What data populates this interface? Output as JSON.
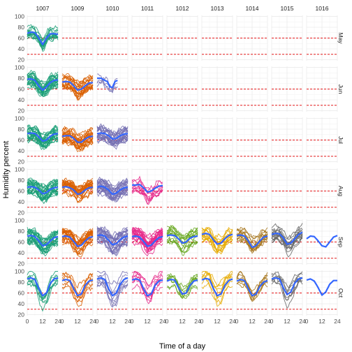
{
  "chart_data": {
    "type": "line",
    "layout": "facet-grid",
    "xlabel": "Time of a day",
    "ylabel": "Humidity percent",
    "x_ticks": [
      0,
      12,
      24
    ],
    "x_range": [
      0,
      24
    ],
    "y_ticks": [
      20,
      40,
      60,
      80,
      100
    ],
    "y_range": [
      18,
      102
    ],
    "reference_lines": [
      {
        "y": 60,
        "style": "dashed",
        "color": "#e41a1c"
      },
      {
        "y": 30,
        "style": "dashed",
        "color": "#e41a1c"
      }
    ],
    "smooth_color": "#3366ff",
    "columns": [
      "1007",
      "1009",
      "1010",
      "1011",
      "1012",
      "1013",
      "1014",
      "1015",
      "1016"
    ],
    "rows": [
      "May",
      "Jun",
      "Jul",
      "Aug",
      "Sep",
      "Oct"
    ],
    "column_colors": {
      "1007": "#1b9e77",
      "1009": "#d95f02",
      "1010": "#7570b3",
      "1011": "#e7298a",
      "1012": "#66a61e",
      "1013": "#e6ab02",
      "1014": "#a6761d",
      "1015": "#666666",
      "1016": "#3366ff"
    },
    "panels": [
      {
        "column": "1007",
        "row": "May",
        "days": 15,
        "x_max": 24,
        "smooth": [
          [
            0,
            69
          ],
          [
            3,
            71
          ],
          [
            6,
            70
          ],
          [
            9,
            60
          ],
          [
            12,
            48
          ],
          [
            15,
            60
          ],
          [
            18,
            68
          ],
          [
            21,
            68
          ],
          [
            24,
            67
          ]
        ]
      },
      {
        "column": "1007",
        "row": "Jun",
        "days": 25,
        "x_max": 24,
        "smooth": [
          [
            0,
            78
          ],
          [
            3,
            79
          ],
          [
            6,
            76
          ],
          [
            9,
            66
          ],
          [
            12,
            58
          ],
          [
            15,
            64
          ],
          [
            18,
            72
          ],
          [
            21,
            76
          ],
          [
            24,
            77
          ]
        ]
      },
      {
        "column": "1009",
        "row": "Jun",
        "days": 20,
        "x_max": 24,
        "smooth": [
          [
            0,
            73
          ],
          [
            3,
            74
          ],
          [
            6,
            73
          ],
          [
            9,
            66
          ],
          [
            12,
            58
          ],
          [
            15,
            60
          ],
          [
            18,
            66
          ],
          [
            21,
            71
          ],
          [
            24,
            72
          ]
        ]
      },
      {
        "column": "1010",
        "row": "Jun",
        "days": 4,
        "x_max": 16,
        "smooth": [
          [
            0,
            80
          ],
          [
            3,
            80
          ],
          [
            6,
            76
          ],
          [
            8,
            74
          ],
          [
            10,
            64
          ],
          [
            12,
            63
          ],
          [
            14,
            74
          ],
          [
            16,
            76
          ]
        ]
      },
      {
        "column": "1007",
        "row": "Jul",
        "days": 25,
        "x_max": 24,
        "smooth": [
          [
            0,
            72
          ],
          [
            3,
            73
          ],
          [
            6,
            72
          ],
          [
            9,
            66
          ],
          [
            12,
            58
          ],
          [
            15,
            60
          ],
          [
            18,
            67
          ],
          [
            21,
            71
          ],
          [
            24,
            72
          ]
        ]
      },
      {
        "column": "1009",
        "row": "Jul",
        "days": 25,
        "x_max": 24,
        "smooth": [
          [
            0,
            67
          ],
          [
            3,
            68
          ],
          [
            6,
            68
          ],
          [
            9,
            63
          ],
          [
            12,
            56
          ],
          [
            15,
            56
          ],
          [
            18,
            62
          ],
          [
            21,
            66
          ],
          [
            24,
            67
          ]
        ]
      },
      {
        "column": "1010",
        "row": "Jul",
        "days": 25,
        "x_max": 24,
        "smooth": [
          [
            0,
            72
          ],
          [
            3,
            73
          ],
          [
            6,
            72
          ],
          [
            9,
            68
          ],
          [
            12,
            62
          ],
          [
            15,
            63
          ],
          [
            18,
            68
          ],
          [
            21,
            71
          ],
          [
            24,
            72
          ]
        ]
      },
      {
        "column": "1007",
        "row": "Aug",
        "days": 25,
        "x_max": 24,
        "smooth": [
          [
            0,
            67
          ],
          [
            3,
            68
          ],
          [
            6,
            67
          ],
          [
            9,
            62
          ],
          [
            12,
            55
          ],
          [
            15,
            57
          ],
          [
            18,
            63
          ],
          [
            21,
            66
          ],
          [
            24,
            67
          ]
        ]
      },
      {
        "column": "1009",
        "row": "Aug",
        "days": 25,
        "x_max": 24,
        "smooth": [
          [
            0,
            67
          ],
          [
            3,
            68
          ],
          [
            6,
            66
          ],
          [
            9,
            62
          ],
          [
            12,
            54
          ],
          [
            15,
            56
          ],
          [
            18,
            62
          ],
          [
            21,
            66
          ],
          [
            24,
            67
          ]
        ]
      },
      {
        "column": "1010",
        "row": "Aug",
        "days": 25,
        "x_max": 24,
        "smooth": [
          [
            0,
            67
          ],
          [
            3,
            69
          ],
          [
            6,
            67
          ],
          [
            9,
            62
          ],
          [
            12,
            54
          ],
          [
            15,
            56
          ],
          [
            18,
            62
          ],
          [
            21,
            66
          ],
          [
            24,
            67
          ]
        ]
      },
      {
        "column": "1011",
        "row": "Aug",
        "days": 10,
        "x_max": 24,
        "smooth": [
          [
            0,
            71
          ],
          [
            3,
            71
          ],
          [
            6,
            72
          ],
          [
            9,
            66
          ],
          [
            12,
            58
          ],
          [
            15,
            60
          ],
          [
            18,
            65
          ],
          [
            21,
            69
          ],
          [
            24,
            70
          ]
        ]
      },
      {
        "column": "1007",
        "row": "Sep",
        "days": 25,
        "x_max": 24,
        "smooth": [
          [
            0,
            71
          ],
          [
            3,
            72
          ],
          [
            6,
            70
          ],
          [
            9,
            62
          ],
          [
            12,
            53
          ],
          [
            15,
            55
          ],
          [
            18,
            62
          ],
          [
            21,
            68
          ],
          [
            24,
            70
          ]
        ]
      },
      {
        "column": "1009",
        "row": "Sep",
        "days": 25,
        "x_max": 24,
        "smooth": [
          [
            0,
            70
          ],
          [
            3,
            71
          ],
          [
            6,
            69
          ],
          [
            9,
            61
          ],
          [
            12,
            52
          ],
          [
            15,
            54
          ],
          [
            18,
            62
          ],
          [
            21,
            68
          ],
          [
            24,
            70
          ]
        ]
      },
      {
        "column": "1010",
        "row": "Sep",
        "days": 25,
        "x_max": 24,
        "smooth": [
          [
            0,
            72
          ],
          [
            3,
            73
          ],
          [
            6,
            71
          ],
          [
            9,
            63
          ],
          [
            12,
            55
          ],
          [
            15,
            57
          ],
          [
            18,
            64
          ],
          [
            21,
            69
          ],
          [
            24,
            71
          ]
        ]
      },
      {
        "column": "1011",
        "row": "Sep",
        "days": 25,
        "x_max": 24,
        "smooth": [
          [
            0,
            70
          ],
          [
            3,
            71
          ],
          [
            6,
            69
          ],
          [
            9,
            61
          ],
          [
            12,
            52
          ],
          [
            15,
            54
          ],
          [
            18,
            62
          ],
          [
            21,
            68
          ],
          [
            24,
            70
          ]
        ]
      },
      {
        "column": "1012",
        "row": "Sep",
        "days": 15,
        "x_max": 24,
        "smooth": [
          [
            0,
            72
          ],
          [
            3,
            73
          ],
          [
            6,
            72
          ],
          [
            9,
            66
          ],
          [
            12,
            58
          ],
          [
            15,
            60
          ],
          [
            18,
            67
          ],
          [
            21,
            70
          ],
          [
            24,
            71
          ]
        ]
      },
      {
        "column": "1013",
        "row": "Sep",
        "days": 15,
        "x_max": 24,
        "smooth": [
          [
            0,
            74
          ],
          [
            3,
            76
          ],
          [
            6,
            74
          ],
          [
            9,
            64
          ],
          [
            12,
            56
          ],
          [
            15,
            58
          ],
          [
            18,
            66
          ],
          [
            21,
            72
          ],
          [
            24,
            74
          ]
        ]
      },
      {
        "column": "1014",
        "row": "Sep",
        "days": 15,
        "x_max": 24,
        "smooth": [
          [
            0,
            72
          ],
          [
            3,
            73
          ],
          [
            6,
            71
          ],
          [
            9,
            62
          ],
          [
            12,
            50
          ],
          [
            15,
            53
          ],
          [
            18,
            62
          ],
          [
            21,
            69
          ],
          [
            24,
            71
          ]
        ]
      },
      {
        "column": "1015",
        "row": "Sep",
        "days": 15,
        "x_max": 24,
        "smooth": [
          [
            0,
            74
          ],
          [
            3,
            76
          ],
          [
            6,
            75
          ],
          [
            9,
            68
          ],
          [
            12,
            56
          ],
          [
            15,
            58
          ],
          [
            18,
            66
          ],
          [
            21,
            74
          ],
          [
            24,
            78
          ]
        ]
      },
      {
        "column": "1016",
        "row": "Sep",
        "days": 0,
        "x_max": 24,
        "smooth": [
          [
            0,
            66
          ],
          [
            3,
            71
          ],
          [
            6,
            70
          ],
          [
            9,
            62
          ],
          [
            12,
            53
          ],
          [
            15,
            51
          ],
          [
            18,
            60
          ],
          [
            21,
            69
          ],
          [
            24,
            72
          ]
        ]
      },
      {
        "column": "1007",
        "row": "Oct",
        "days": 8,
        "x_max": 24,
        "smooth": [
          [
            0,
            86
          ],
          [
            3,
            88
          ],
          [
            6,
            85
          ],
          [
            9,
            68
          ],
          [
            12,
            55
          ],
          [
            15,
            60
          ],
          [
            18,
            78
          ],
          [
            21,
            86
          ],
          [
            24,
            88
          ]
        ]
      },
      {
        "column": "1009",
        "row": "Oct",
        "days": 8,
        "x_max": 24,
        "smooth": [
          [
            0,
            83
          ],
          [
            3,
            85
          ],
          [
            6,
            83
          ],
          [
            9,
            68
          ],
          [
            12,
            55
          ],
          [
            15,
            58
          ],
          [
            18,
            74
          ],
          [
            21,
            82
          ],
          [
            24,
            84
          ]
        ]
      },
      {
        "column": "1010",
        "row": "Oct",
        "days": 8,
        "x_max": 24,
        "smooth": [
          [
            0,
            86
          ],
          [
            3,
            88
          ],
          [
            6,
            85
          ],
          [
            9,
            68
          ],
          [
            12,
            55
          ],
          [
            15,
            60
          ],
          [
            18,
            76
          ],
          [
            21,
            85
          ],
          [
            24,
            88
          ]
        ]
      },
      {
        "column": "1011",
        "row": "Oct",
        "days": 8,
        "x_max": 24,
        "smooth": [
          [
            0,
            84
          ],
          [
            3,
            86
          ],
          [
            6,
            84
          ],
          [
            9,
            68
          ],
          [
            12,
            55
          ],
          [
            15,
            58
          ],
          [
            18,
            74
          ],
          [
            21,
            82
          ],
          [
            24,
            84
          ]
        ]
      },
      {
        "column": "1012",
        "row": "Oct",
        "days": 8,
        "x_max": 24,
        "smooth": [
          [
            0,
            82
          ],
          [
            3,
            85
          ],
          [
            6,
            84
          ],
          [
            9,
            70
          ],
          [
            12,
            58
          ],
          [
            15,
            60
          ],
          [
            18,
            74
          ],
          [
            21,
            82
          ],
          [
            24,
            84
          ]
        ]
      },
      {
        "column": "1013",
        "row": "Oct",
        "days": 8,
        "x_max": 24,
        "smooth": [
          [
            0,
            84
          ],
          [
            3,
            87
          ],
          [
            6,
            85
          ],
          [
            9,
            68
          ],
          [
            12,
            55
          ],
          [
            15,
            58
          ],
          [
            18,
            74
          ],
          [
            21,
            83
          ],
          [
            24,
            86
          ]
        ]
      },
      {
        "column": "1014",
        "row": "Oct",
        "days": 8,
        "x_max": 24,
        "smooth": [
          [
            0,
            82
          ],
          [
            3,
            85
          ],
          [
            6,
            83
          ],
          [
            9,
            68
          ],
          [
            12,
            55
          ],
          [
            15,
            58
          ],
          [
            18,
            72
          ],
          [
            21,
            80
          ],
          [
            24,
            83
          ]
        ]
      },
      {
        "column": "1015",
        "row": "Oct",
        "days": 8,
        "x_max": 24,
        "smooth": [
          [
            0,
            86
          ],
          [
            3,
            88
          ],
          [
            6,
            86
          ],
          [
            9,
            70
          ],
          [
            12,
            57
          ],
          [
            15,
            62
          ],
          [
            18,
            78
          ],
          [
            21,
            86
          ],
          [
            24,
            88
          ]
        ]
      },
      {
        "column": "1016",
        "row": "Oct",
        "days": 0,
        "x_max": 24,
        "smooth": [
          [
            0,
            84
          ],
          [
            3,
            86
          ],
          [
            6,
            82
          ],
          [
            9,
            70
          ],
          [
            12,
            56
          ],
          [
            15,
            62
          ],
          [
            18,
            76
          ],
          [
            21,
            83
          ],
          [
            24,
            83
          ]
        ]
      }
    ]
  }
}
